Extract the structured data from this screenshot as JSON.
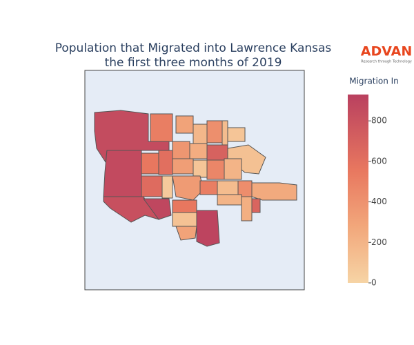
{
  "chart_data": {
    "type": "choropleth",
    "title": [
      "Population that Migrated into Lawrence Kansas",
      "the first three months of 2019"
    ],
    "logo": {
      "name": "ADVAN",
      "tagline": "Research through Technology"
    },
    "colorbar_title": "Migration In",
    "zlim": [
      0,
      930
    ],
    "zticks": [
      0,
      200,
      400,
      600,
      800
    ],
    "colorscale": [
      [
        0,
        "#f6d4a5"
      ],
      [
        0.3,
        "#f2a77b"
      ],
      [
        0.6,
        "#e8775f"
      ],
      [
        1,
        "#b9405f"
      ]
    ],
    "values": [
      850,
      860,
      820,
      880,
      900,
      520,
      120,
      260,
      90,
      300,
      180,
      420,
      150,
      560,
      610,
      380,
      240,
      700,
      330,
      90,
      470,
      200,
      640,
      60,
      350,
      520,
      150,
      430,
      560,
      110,
      300,
      230,
      680,
      200
    ]
  }
}
